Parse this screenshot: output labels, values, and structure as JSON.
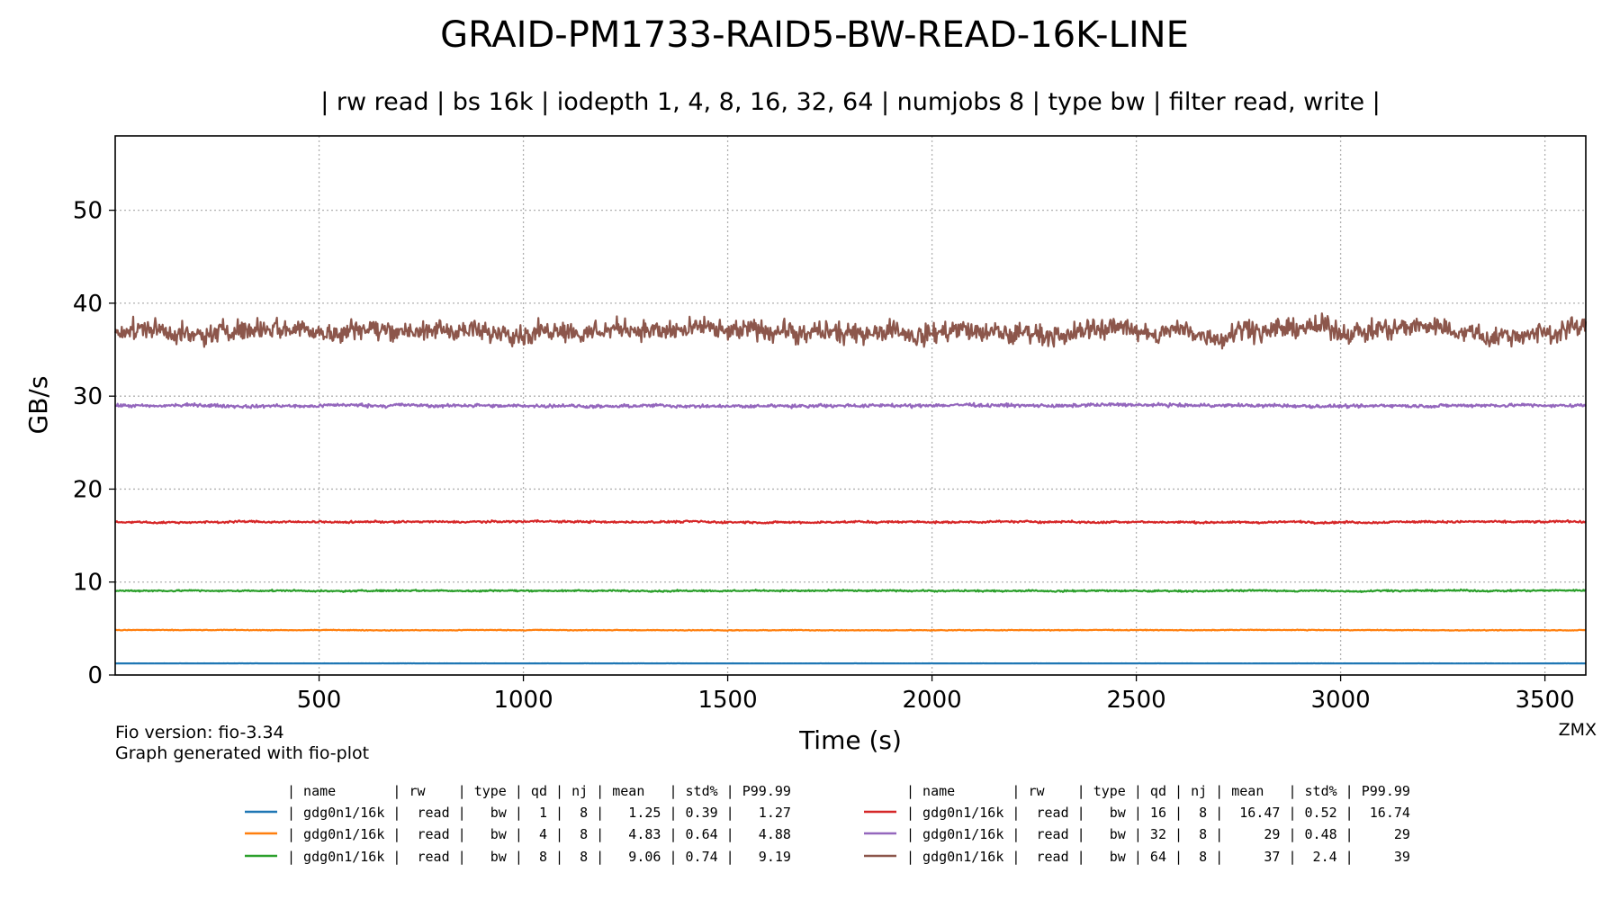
{
  "chart_data": {
    "type": "line",
    "title": "GRAID-PM1733-RAID5-BW-READ-16K-LINE",
    "subtitle": "| rw read | bs 16k | iodepth 1, 4, 8, 16, 32, 64 | numjobs 8 | type bw | filter read, write |",
    "xlabel": "Time (s)",
    "ylabel": "GB/s",
    "xlim": [
      1,
      3600
    ],
    "ylim": [
      0,
      58
    ],
    "xticks": [
      500,
      1000,
      1500,
      2000,
      2500,
      3000,
      3500
    ],
    "yticks": [
      0,
      10,
      20,
      30,
      40,
      50
    ],
    "grid": true,
    "series": [
      {
        "qd": 1,
        "color": "#1f77b4",
        "mean": 1.25,
        "std_pct": 0.39,
        "p9999": 1.27
      },
      {
        "qd": 4,
        "color": "#ff7f0e",
        "mean": 4.83,
        "std_pct": 0.64,
        "p9999": 4.88
      },
      {
        "qd": 8,
        "color": "#2ca02c",
        "mean": 9.06,
        "std_pct": 0.74,
        "p9999": 9.19
      },
      {
        "qd": 16,
        "color": "#d62728",
        "mean": 16.47,
        "std_pct": 0.52,
        "p9999": 16.74
      },
      {
        "qd": 32,
        "color": "#9467bd",
        "mean": 29,
        "std_pct": 0.48,
        "p9999": 29
      },
      {
        "qd": 64,
        "color": "#8c564b",
        "mean": 37,
        "std_pct": 2.4,
        "p9999": 39
      }
    ]
  },
  "footer": {
    "fio_version": "Fio version: fio-3.34",
    "generated": "Graph generated with fio-plot",
    "author": "ZMX"
  },
  "legend_table": {
    "header": "| name       | rw    | type | qd | nj | mean   | std% | P99.99",
    "rows": [
      "| gdg0n1/16k |  read |   bw |  1 |  8 |   1.25 | 0.39 |   1.27",
      "| gdg0n1/16k |  read |   bw |  4 |  8 |   4.83 | 0.64 |   4.88",
      "| gdg0n1/16k |  read |   bw |  8 |  8 |   9.06 | 0.74 |   9.19",
      "| gdg0n1/16k |  read |   bw | 16 |  8 |  16.47 | 0.52 |  16.74",
      "| gdg0n1/16k |  read |   bw | 32 |  8 |     29 | 0.48 |     29",
      "| gdg0n1/16k |  read |   bw | 64 |  8 |     37 |  2.4 |     39"
    ]
  }
}
